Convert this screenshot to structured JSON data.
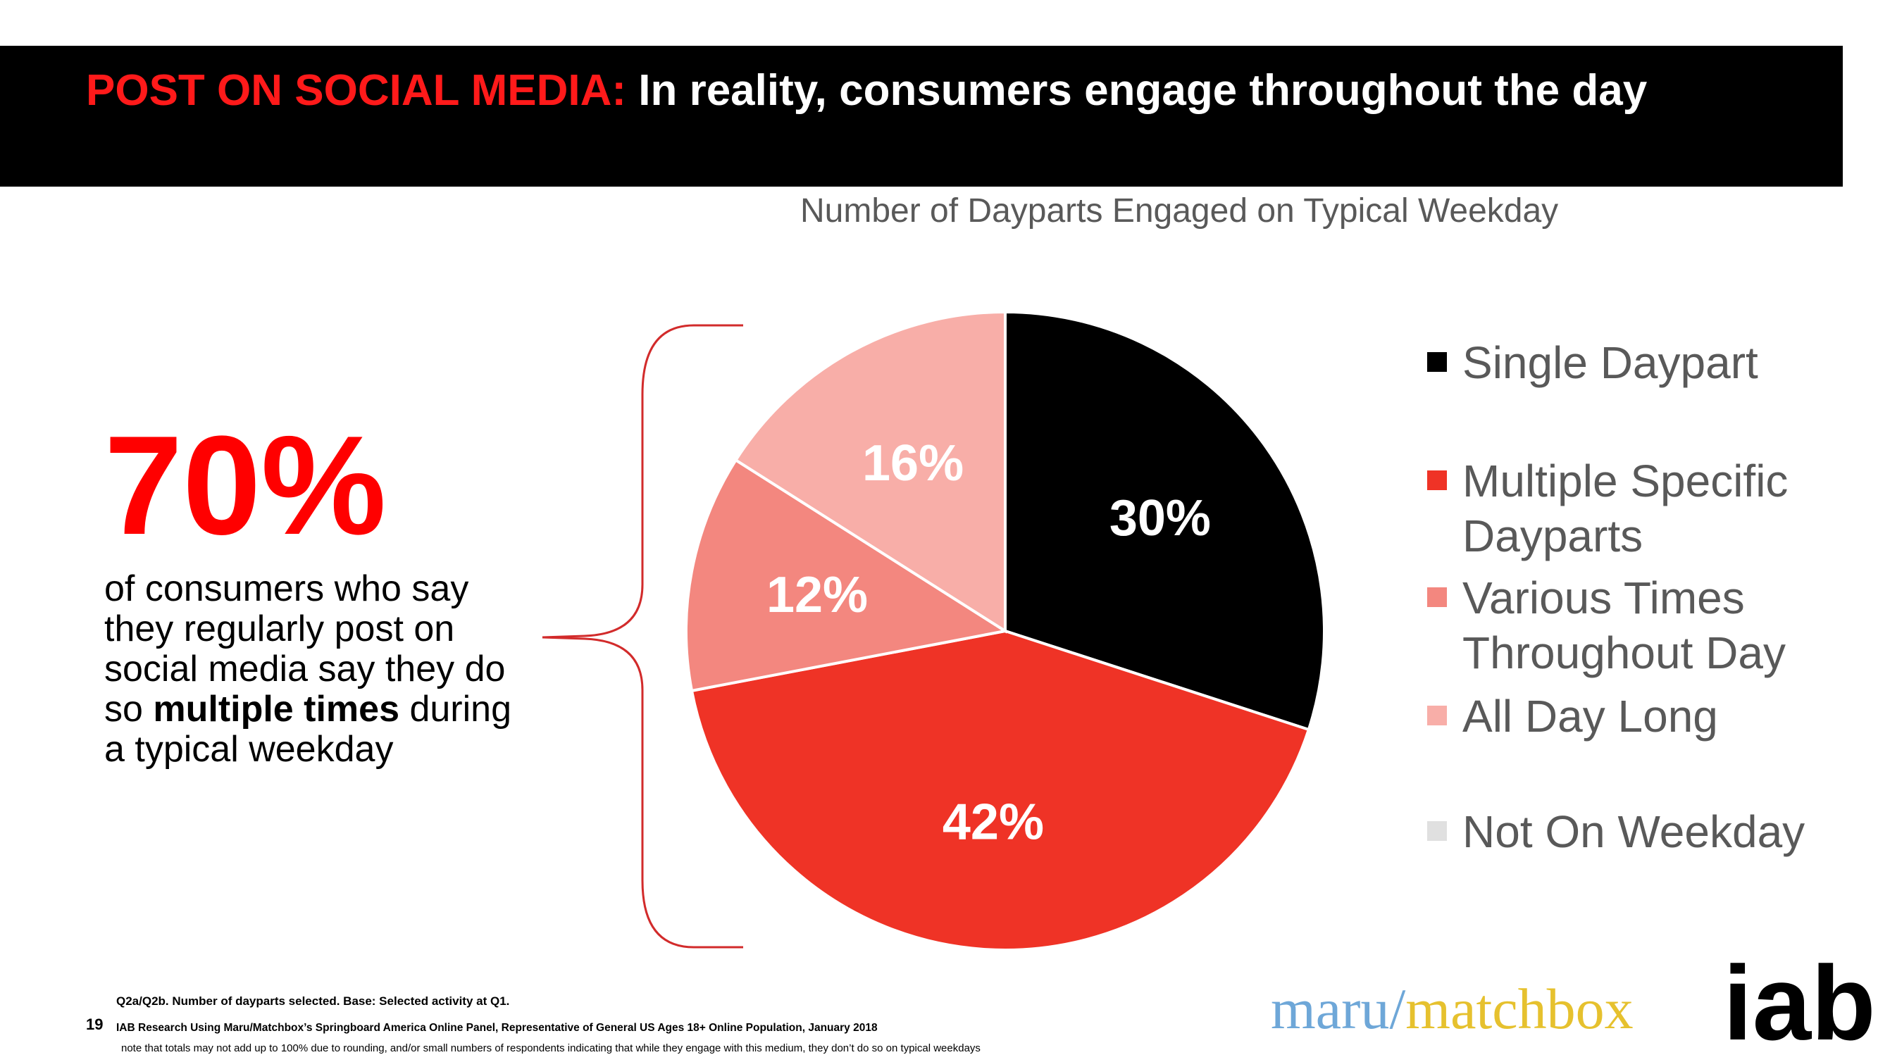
{
  "header": {
    "title_accent": "POST ON SOCIAL MEDIA:",
    "title_rest": " In reality, consumers engage throughout the day",
    "accent_color": "#ff1a1a",
    "bar_color": "#000000"
  },
  "highlight": {
    "big_stat": "70%",
    "desc_part1": "of consumers who say they regularly post on social media say they do so ",
    "desc_bold": "multiple times",
    "desc_part2": " during a typical weekday",
    "stat_color": "#ff0000"
  },
  "chart_data": {
    "type": "pie",
    "title": "Number of Dayparts Engaged on Typical Weekday",
    "unit": "%",
    "slices": [
      {
        "name": "Single Daypart",
        "value": 30,
        "label": "30%",
        "color": "#000000",
        "label_color": "#ffffff"
      },
      {
        "name": "Multiple Specific Dayparts",
        "value": 42,
        "label": "42%",
        "color": "#ef3326",
        "label_color": "#ffffff"
      },
      {
        "name": "Various Times Throughout Day",
        "value": 12,
        "label": "12%",
        "color": "#f3877f",
        "label_color": "#ffffff"
      },
      {
        "name": "All Day Long",
        "value": 16,
        "label": "16%",
        "color": "#f8aea8",
        "label_color": "#ffffff"
      },
      {
        "name": "Not On Weekday",
        "value": 0,
        "label": "",
        "color": "#e0e0e0",
        "label_color": "#ffffff"
      }
    ],
    "legend": [
      {
        "label": "Single Daypart",
        "color": "#000000"
      },
      {
        "label": "Multiple Specific Dayparts",
        "color": "#ef3326"
      },
      {
        "label": "Various Times Throughout Day",
        "color": "#f3877f"
      },
      {
        "label": "All Day Long",
        "color": "#f8aea8"
      },
      {
        "label": "Not On Weekday",
        "color": "#e0e0e0"
      }
    ],
    "legend_position": "right",
    "bracket_color": "#d22b2b"
  },
  "footer": {
    "page_number": "19",
    "note1": "Q2a/Q2b. Number of dayparts selected. Base: Selected activity at Q1.",
    "note2": "IAB Research Using Maru/Matchbox’s Springboard America Online Panel, Representative of General US Ages 18+ Online Population, January 2018",
    "note3": "note that totals may not add up to 100% due to rounding, and/or small numbers of respondents indicating that while they engage with this medium, they don’t do so on typical weekdays"
  },
  "logos": {
    "maru": "maru",
    "slash": "/",
    "matchbox": "matchbox",
    "iab": "iab",
    "iab_dot": ".",
    "maru_color": "#6ea7d8",
    "matchbox_color": "#e6c12e",
    "iab_dot_color": "#e2231a"
  }
}
